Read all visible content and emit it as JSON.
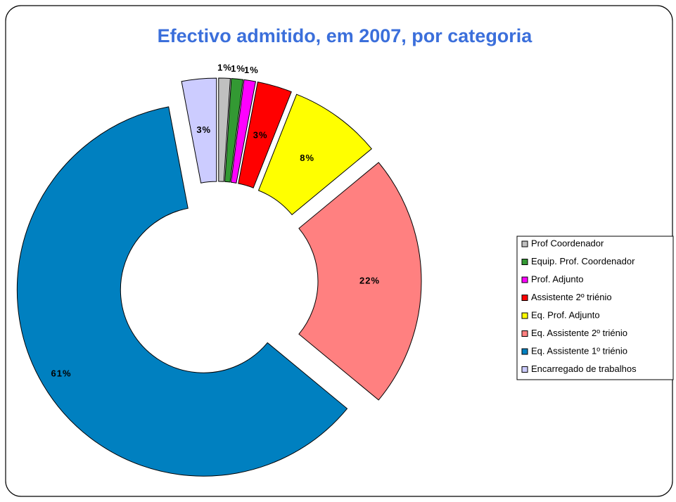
{
  "chart_data": {
    "type": "donut",
    "title": "Efectivo admitido, em 2007, por categoria",
    "categories": [
      "Prof Coordenador",
      "Equip. Prof. Coordenador",
      "Prof. Adjunto",
      "Assistente 2º triénio",
      "Eq. Prof. Adjunto",
      "Eq. Assistente 2º triénio",
      "Eq. Assistente 1º triénio",
      "Encarregado de trabalhos"
    ],
    "values": [
      1,
      1,
      1,
      3,
      8,
      22,
      61,
      3
    ],
    "value_labels": [
      "1%",
      "1%",
      "1%",
      "3%",
      "8%",
      "22%",
      "61%",
      "3%"
    ],
    "colors": [
      "#c0c0c0",
      "#339933",
      "#ff00ff",
      "#ff0000",
      "#ffff00",
      "#ff8080",
      "#0080c0",
      "#ccccff"
    ],
    "legend": "right"
  }
}
